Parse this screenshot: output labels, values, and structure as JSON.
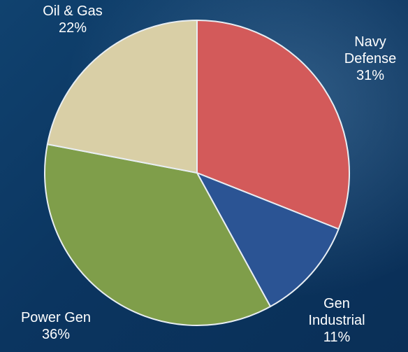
{
  "chart_data": {
    "type": "pie",
    "slices": [
      {
        "name": "Navy Defense",
        "label_lines": [
          "Navy",
          "Defense"
        ],
        "value": 31,
        "value_label": "31%",
        "color": "#d35a5a"
      },
      {
        "name": "Gen Industrial",
        "label_lines": [
          "Gen",
          "Industrial"
        ],
        "value": 11,
        "value_label": "11%",
        "color": "#2b5494"
      },
      {
        "name": "Power Gen",
        "label_lines": [
          "Power Gen"
        ],
        "value": 36,
        "value_label": "36%",
        "color": "#7f9e4a"
      },
      {
        "name": "Oil & Gas",
        "label_lines": [
          "Oil & Gas"
        ],
        "value": 22,
        "value_label": "22%",
        "color": "#d9cfa6"
      }
    ],
    "start": "top",
    "direction": "clockwise",
    "legend": "none"
  }
}
